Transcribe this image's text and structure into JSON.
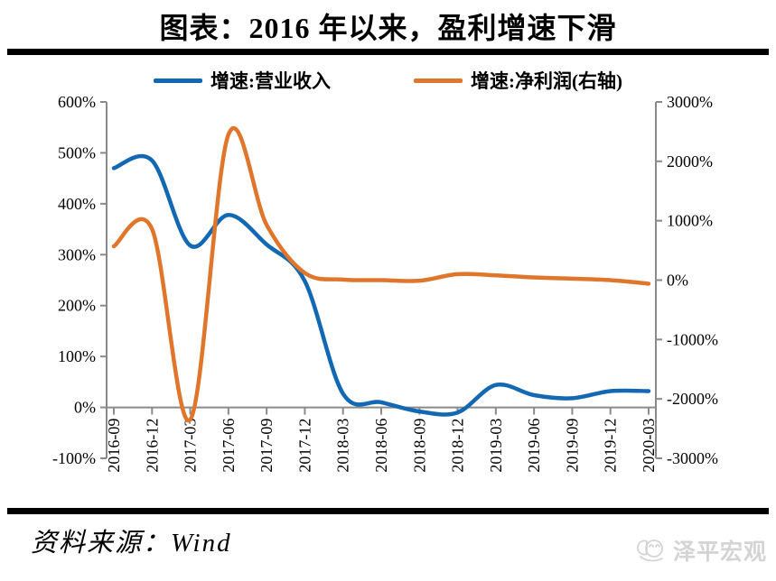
{
  "title": "图表：2016 年以来，盈利增速下滑",
  "legend": [
    {
      "label": "增速:营业收入",
      "color": "#1268B2"
    },
    {
      "label": "增速:净利润(右轴)",
      "color": "#E0762B"
    }
  ],
  "chart_data": {
    "type": "line",
    "title": "图表：2016 年以来，盈利增速下滑",
    "categories": [
      "2016-09",
      "2016-12",
      "2017-03",
      "2017-06",
      "2017-09",
      "2017-12",
      "2018-03",
      "2018-06",
      "2018-09",
      "2018-12",
      "2019-03",
      "2019-06",
      "2019-09",
      "2019-12",
      "2020-03"
    ],
    "series": [
      {
        "name": "增速:营业收入",
        "axis": "left",
        "color": "#1268B2",
        "values": [
          470,
          485,
          318,
          378,
          320,
          248,
          27,
          10,
          -8,
          -10,
          44,
          24,
          18,
          32,
          32
        ]
      },
      {
        "name": "增速:净利润(右轴)",
        "axis": "right",
        "color": "#E0762B",
        "values": [
          570,
          860,
          -2350,
          2450,
          930,
          120,
          10,
          0,
          -10,
          100,
          80,
          45,
          25,
          0,
          -60
        ]
      }
    ],
    "left_axis": {
      "min": -100,
      "max": 600,
      "ticks": [
        "600%",
        "500%",
        "400%",
        "300%",
        "200%",
        "100%",
        "0%",
        "-100%"
      ]
    },
    "right_axis": {
      "min": -3000,
      "max": 3000,
      "ticks": [
        "3000%",
        "2000%",
        "1000%",
        "0%",
        "-1000%",
        "-2000%",
        "-3000%"
      ]
    },
    "grid": false,
    "legend_position": "top",
    "axis_color": "#8a8a8a",
    "smooth_lines": true
  },
  "footer": {
    "source_label": "资料来源：Wind"
  },
  "watermark": {
    "text": "泽平宏观"
  }
}
